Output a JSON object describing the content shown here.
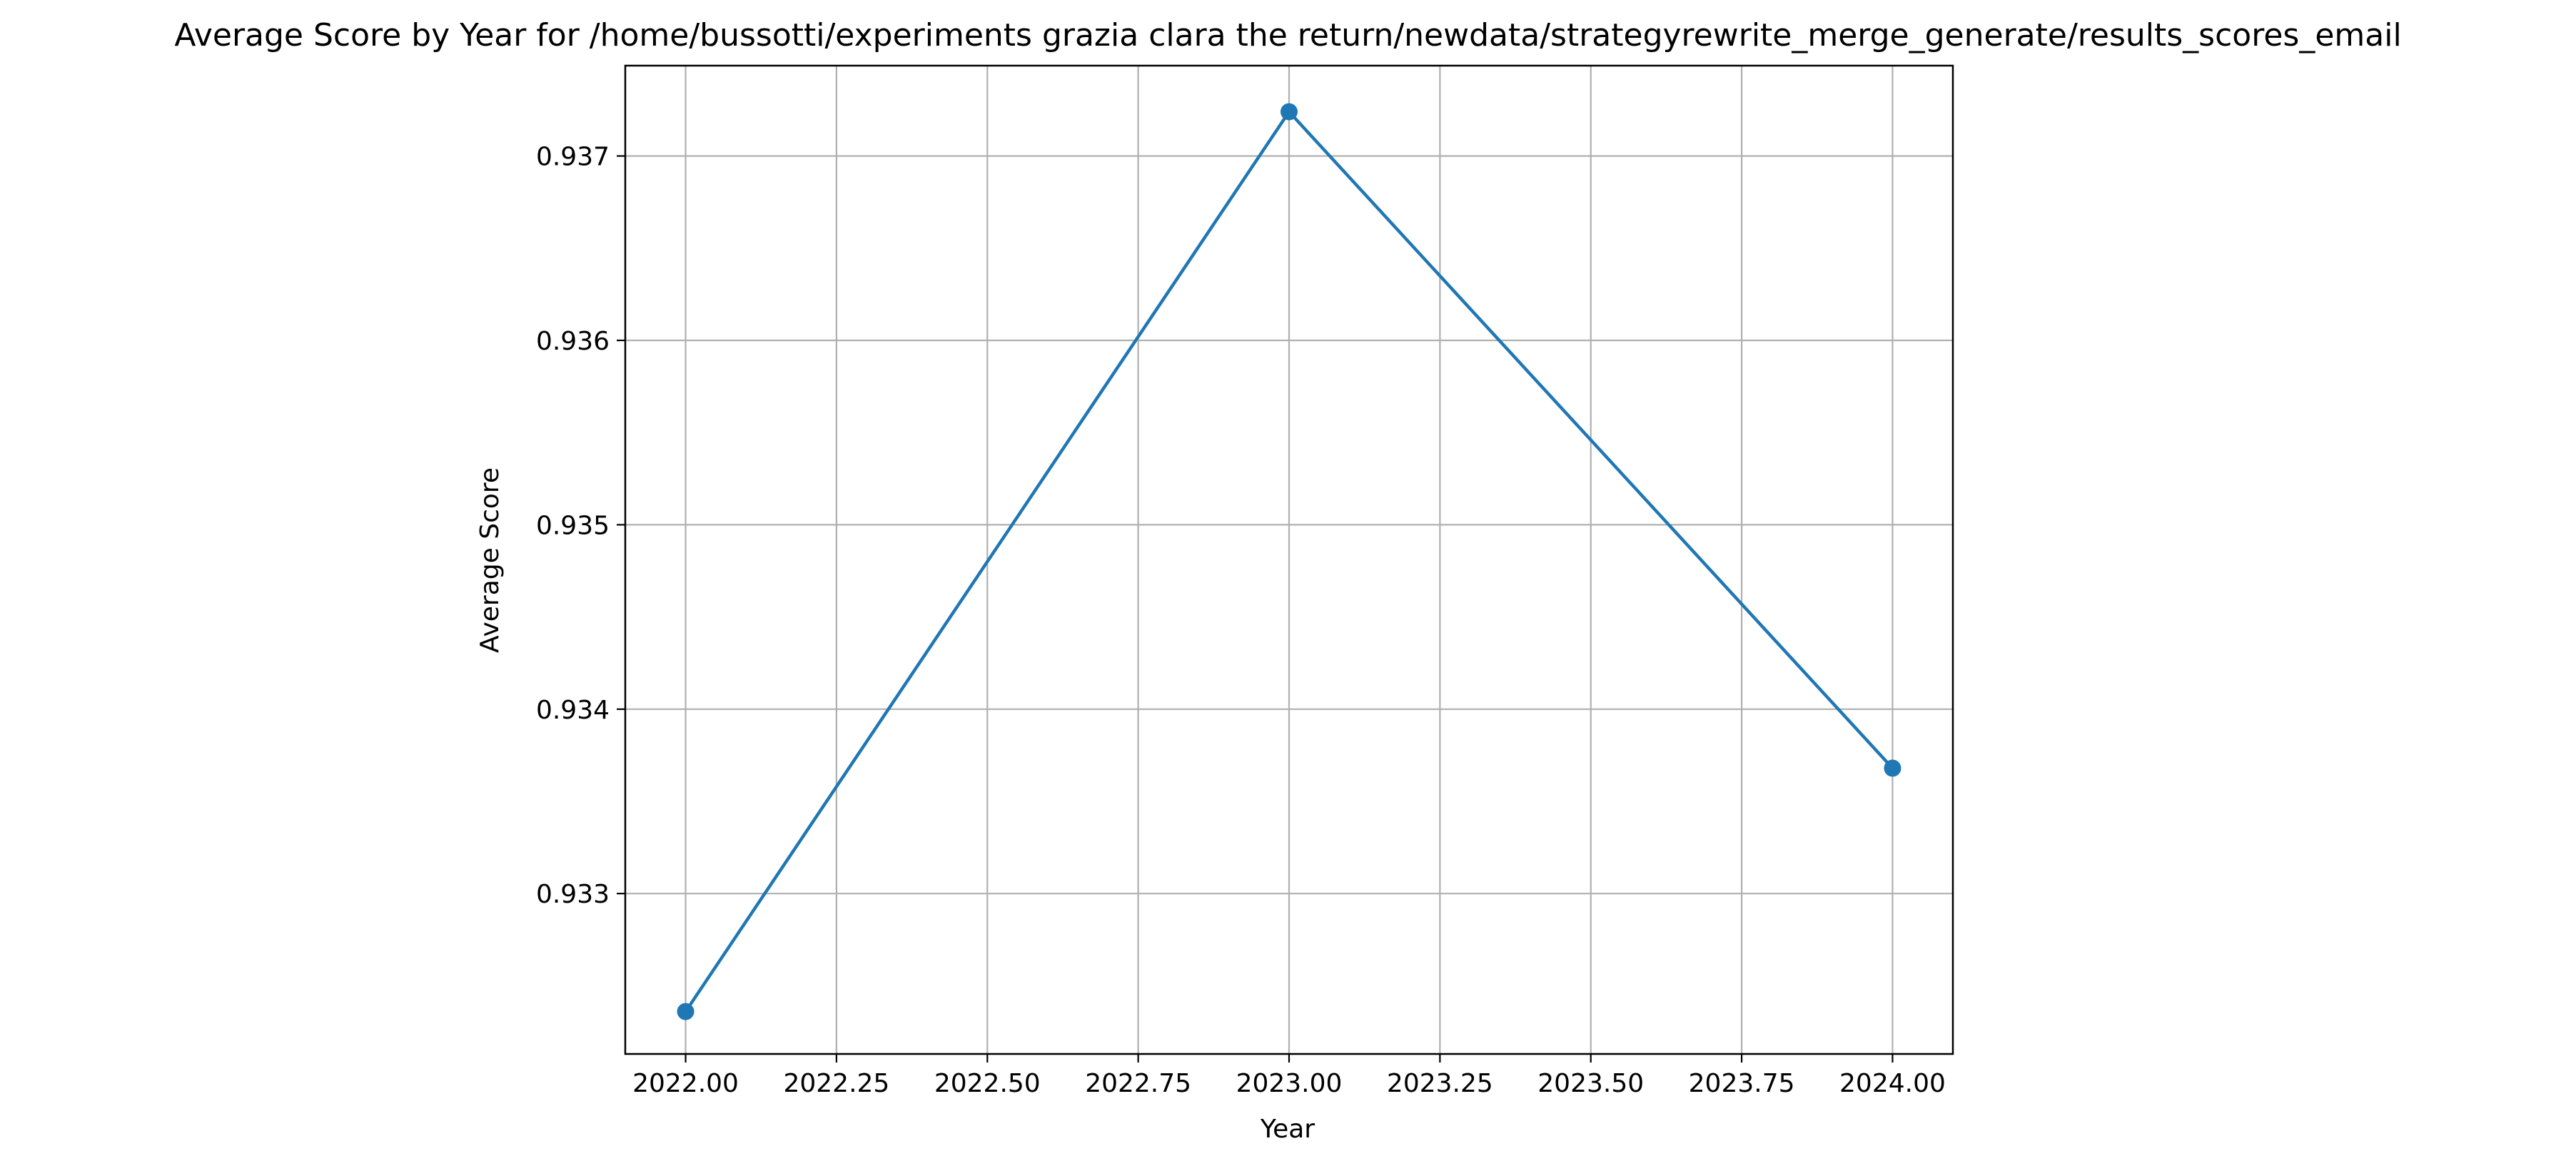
{
  "chart_data": {
    "type": "line",
    "title": "Average Score by Year for /home/bussotti/experiments grazia clara the return/newdata/strategyrewrite_merge_generate/results_scores_email",
    "xlabel": "Year",
    "ylabel": "Average Score",
    "x": [
      2022,
      2023,
      2024
    ],
    "series": [
      {
        "values": [
          0.93236,
          0.93724,
          0.93368
        ]
      }
    ],
    "xlim": [
      2021.9,
      2024.1
    ],
    "ylim": [
      0.93213,
      0.93749
    ],
    "xticks": [
      2022.0,
      2022.25,
      2022.5,
      2022.75,
      2023.0,
      2023.25,
      2023.5,
      2023.75,
      2024.0
    ],
    "xtick_labels": [
      "2022.00",
      "2022.25",
      "2022.50",
      "2022.75",
      "2023.00",
      "2023.25",
      "2023.50",
      "2023.75",
      "2024.00"
    ],
    "yticks": [
      0.933,
      0.934,
      0.935,
      0.936,
      0.937
    ],
    "ytick_labels": [
      "0.933",
      "0.934",
      "0.935",
      "0.936",
      "0.937"
    ],
    "grid": true,
    "markers": true,
    "line_color": "#1f77b4",
    "grid_color": "#b0b0b0"
  }
}
